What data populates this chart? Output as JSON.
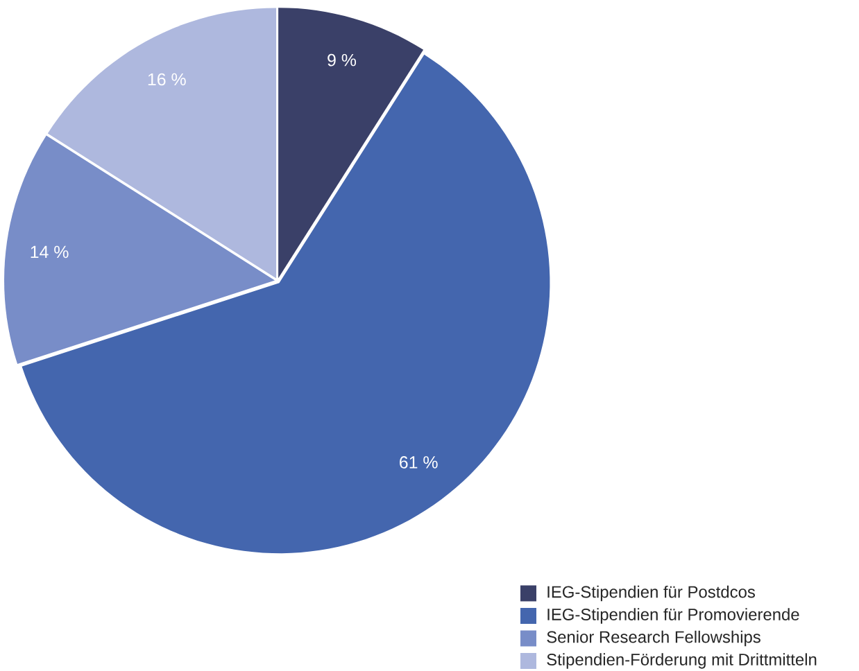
{
  "chart_data": {
    "type": "pie",
    "categories": [
      "IEG-Stipendien für Postdcos",
      "IEG-Stipendien für Promovierende",
      "Senior Research Fellowships",
      "Stipendien-Förderung mit Drittmitteln"
    ],
    "values": [
      9,
      61,
      14,
      16
    ],
    "colors": [
      "#3a4068",
      "#4466ae",
      "#788dc8",
      "#aeb8de"
    ],
    "value_labels": [
      "9 %",
      "61 %",
      "14 %",
      "16 %"
    ],
    "legend": "bottom right"
  }
}
